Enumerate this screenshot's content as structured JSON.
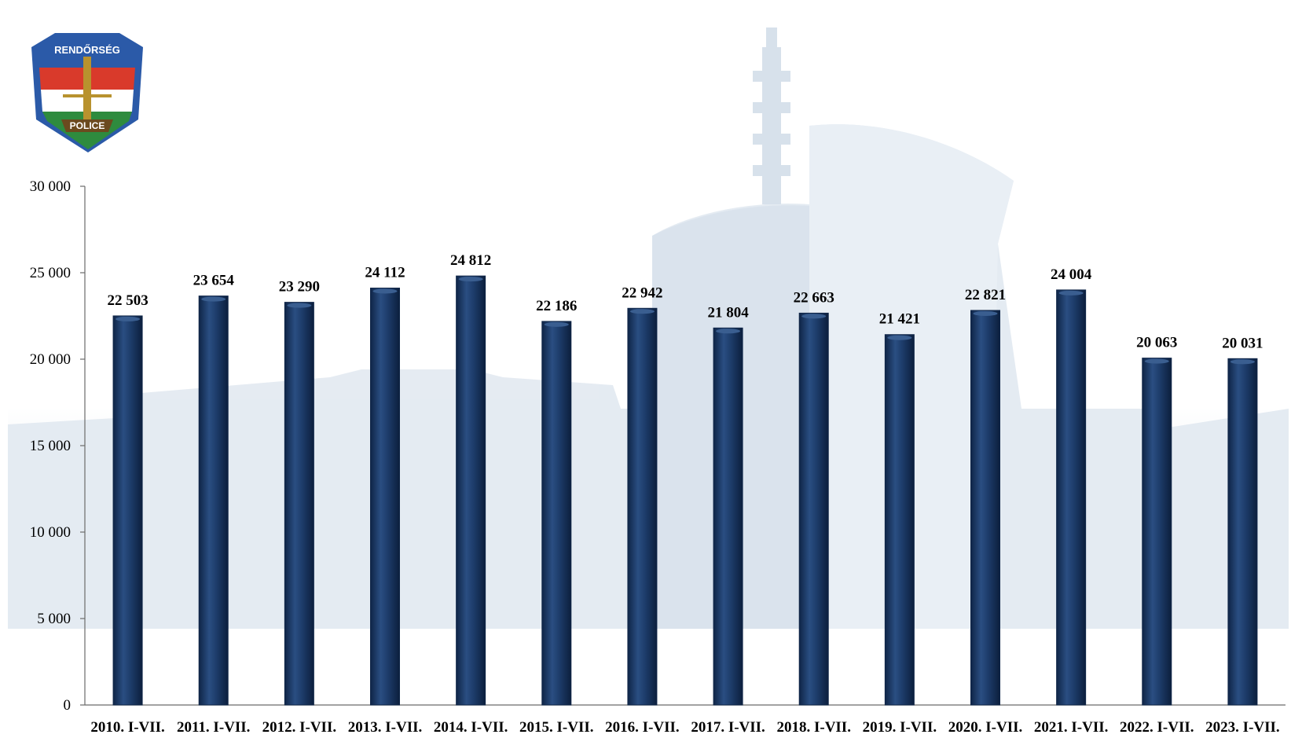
{
  "logo": {
    "top_text": "RENDŐRSÉG",
    "bottom_text": "POLICE",
    "icon": "police-crest-icon"
  },
  "colors": {
    "bar": "#1b3a66",
    "bar_dark": "#0f2547",
    "bar_light": "#3a5e90",
    "axis": "#6b6b6b",
    "background_tint": "#c9d8e8"
  },
  "chart_data": {
    "type": "bar",
    "title": "",
    "xlabel": "",
    "ylabel": "",
    "ylim": [
      0,
      30000
    ],
    "yticks": [
      0,
      5000,
      10000,
      15000,
      20000,
      25000,
      30000
    ],
    "ytick_labels": [
      "0",
      "5 000",
      "10 000",
      "15 000",
      "20 000",
      "25 000",
      "30 000"
    ],
    "grid": false,
    "legend": "none",
    "categories": [
      "2010. I-VII.",
      "2011. I-VII.",
      "2012. I-VII.",
      "2013. I-VII.",
      "2014. I-VII.",
      "2015. I-VII.",
      "2016. I-VII.",
      "2017. I-VII.",
      "2018. I-VII.",
      "2019. I-VII.",
      "2020. I-VII.",
      "2021. I-VII.",
      "2022. I-VII.",
      "2023. I-VII."
    ],
    "values": [
      22503,
      23654,
      23290,
      24112,
      24812,
      22186,
      22942,
      21804,
      22663,
      21421,
      22821,
      24004,
      20063,
      20031
    ],
    "data_labels": [
      "22 503",
      "23 654",
      "23 290",
      "24 112",
      "24 812",
      "22 186",
      "22 942",
      "21 804",
      "22 663",
      "21 421",
      "22 821",
      "24 004",
      "20 063",
      "20 031"
    ]
  }
}
